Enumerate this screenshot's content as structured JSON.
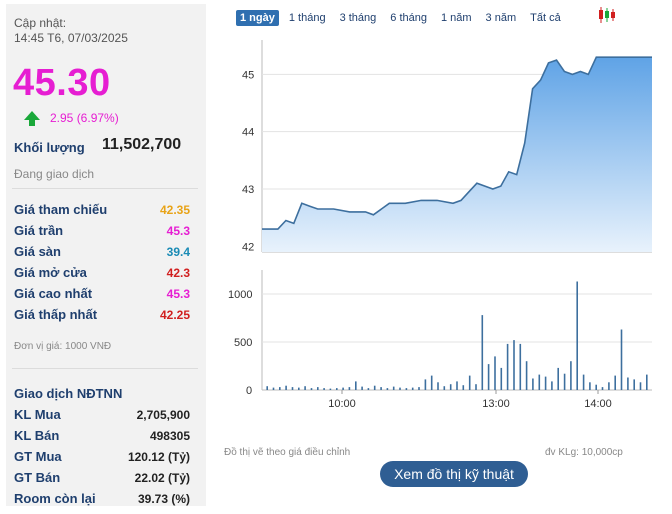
{
  "header": {
    "updated_label": "Cập nhật:",
    "updated_time": "14:45 T6, 07/03/2025"
  },
  "quote": {
    "price": "45.30",
    "change_text": "2.95 (6.97%)",
    "volume_label": "Khối lượng",
    "volume_value": "11,502,700",
    "status": "Đang giao dịch"
  },
  "price_table": [
    {
      "label": "Giá tham chiếu",
      "value": "42.35",
      "color": "#e8a317"
    },
    {
      "label": "Giá trần",
      "value": "45.3",
      "color": "#e61ed2"
    },
    {
      "label": "Giá sàn",
      "value": "39.4",
      "color": "#1a8bb5"
    },
    {
      "label": "Giá mở cửa",
      "value": "42.3",
      "color": "#d11f1f"
    },
    {
      "label": "Giá cao nhất",
      "value": "45.3",
      "color": "#e61ed2"
    },
    {
      "label": "Giá thấp nhất",
      "value": "42.25",
      "color": "#d11f1f"
    }
  ],
  "unit_note": "Đơn vị giá: 1000 VNĐ",
  "foreign": {
    "title": "Giao dịch NĐTNN",
    "rows": [
      {
        "label": "KL Mua",
        "value": "2,705,900"
      },
      {
        "label": "KL Bán",
        "value": "498305"
      },
      {
        "label": "GT Mua",
        "value": "120.12 (Tỷ)"
      },
      {
        "label": "GT Bán",
        "value": "22.02 (Tỷ)"
      },
      {
        "label": "Room còn lại",
        "value": "39.73 (%)"
      }
    ]
  },
  "tabs": [
    "1 ngày",
    "1 tháng",
    "3 tháng",
    "6 tháng",
    "1 năm",
    "3 năm",
    "Tất cả"
  ],
  "active_tab": 0,
  "icons": {
    "chart_type": "candlestick-icon",
    "up": "up-arrow-icon"
  },
  "chart_notes": {
    "left": "Đồ thị vẽ theo giá điều chỉnh",
    "right": "đv KLg: 10,000cp"
  },
  "tech_button_label": "Xem đồ thị kỹ thuật",
  "chart_data": [
    {
      "type": "area",
      "ylim": [
        41.9,
        45.6
      ],
      "yticks": [
        "45",
        "44",
        "43",
        "42"
      ],
      "ytick_values": [
        45,
        44,
        43,
        42
      ],
      "x_range": [
        "09:15",
        "14:45"
      ],
      "points": [
        [
          "09:15",
          42.3
        ],
        [
          "09:25",
          42.3
        ],
        [
          "09:30",
          42.45
        ],
        [
          "09:35",
          42.4
        ],
        [
          "09:40",
          42.75
        ],
        [
          "09:45",
          42.7
        ],
        [
          "09:50",
          42.65
        ],
        [
          "10:00",
          42.65
        ],
        [
          "10:10",
          42.6
        ],
        [
          "10:20",
          42.6
        ],
        [
          "10:25",
          42.55
        ],
        [
          "10:35",
          42.75
        ],
        [
          "10:45",
          42.75
        ],
        [
          "10:55",
          42.8
        ],
        [
          "11:05",
          42.8
        ],
        [
          "11:15",
          42.75
        ],
        [
          "11:20",
          42.8
        ],
        [
          "11:25",
          42.95
        ],
        [
          "11:30",
          43.1
        ],
        [
          "11:35",
          43.05
        ],
        [
          "13:00",
          43.05
        ],
        [
          "13:05",
          43.0
        ],
        [
          "13:10",
          43.05
        ],
        [
          "13:15",
          43.3
        ],
        [
          "13:20",
          43.25
        ],
        [
          "13:25",
          43.8
        ],
        [
          "13:30",
          44.75
        ],
        [
          "13:35",
          44.9
        ],
        [
          "13:40",
          45.2
        ],
        [
          "13:45",
          45.25
        ],
        [
          "13:50",
          45.05
        ],
        [
          "13:55",
          45.0
        ],
        [
          "14:00",
          45.05
        ],
        [
          "14:05",
          45.0
        ],
        [
          "14:10",
          45.3
        ],
        [
          "14:20",
          45.3
        ],
        [
          "14:45",
          45.3
        ]
      ]
    },
    {
      "type": "bar",
      "ylim": [
        0,
        1250
      ],
      "yticks": [
        "1000",
        "500",
        "0"
      ],
      "ytick_values": [
        1000,
        500,
        0
      ],
      "xticks": [
        "10:00",
        "13:00",
        "14:00"
      ],
      "xtick_values": [
        "10:00",
        "13:00",
        "14:00"
      ],
      "bars": [
        [
          "09:15",
          40
        ],
        [
          "09:20",
          25
        ],
        [
          "09:25",
          30
        ],
        [
          "09:30",
          45
        ],
        [
          "09:35",
          30
        ],
        [
          "09:40",
          25
        ],
        [
          "09:45",
          40
        ],
        [
          "09:50",
          20
        ],
        [
          "09:55",
          30
        ],
        [
          "10:00",
          20
        ],
        [
          "10:05",
          15
        ],
        [
          "10:10",
          20
        ],
        [
          "10:15",
          25
        ],
        [
          "10:20",
          30
        ],
        [
          "10:25",
          90
        ],
        [
          "10:30",
          35
        ],
        [
          "10:35",
          20
        ],
        [
          "10:40",
          45
        ],
        [
          "10:45",
          30
        ],
        [
          "10:50",
          20
        ],
        [
          "10:55",
          35
        ],
        [
          "11:00",
          25
        ],
        [
          "11:05",
          20
        ],
        [
          "11:10",
          25
        ],
        [
          "11:15",
          30
        ],
        [
          "11:20",
          110
        ],
        [
          "11:25",
          150
        ],
        [
          "11:30",
          80
        ],
        [
          "11:35",
          40
        ],
        [
          "13:00",
          60
        ],
        [
          "13:05",
          90
        ],
        [
          "13:10",
          50
        ],
        [
          "13:15",
          150
        ],
        [
          "13:20",
          60
        ],
        [
          "13:25",
          780
        ],
        [
          "13:30",
          270
        ],
        [
          "13:35",
          350
        ],
        [
          "13:40",
          230
        ],
        [
          "13:45",
          480
        ],
        [
          "13:50",
          520
        ],
        [
          "13:55",
          480
        ],
        [
          "14:00",
          300
        ],
        [
          "14:05",
          120
        ],
        [
          "14:10",
          160
        ],
        [
          "14:15",
          140
        ],
        [
          "14:20",
          90
        ],
        [
          "14:25",
          230
        ],
        [
          "14:30",
          170
        ],
        [
          "14:35",
          300
        ],
        [
          "14:40",
          1130
        ],
        [
          "14:45",
          160
        ],
        [
          "14:50",
          80
        ],
        [
          "14:55",
          55
        ],
        [
          "15:00",
          30
        ],
        [
          "15:05",
          80
        ],
        [
          "15:10",
          150
        ],
        [
          "15:15",
          630
        ],
        [
          "15:20",
          130
        ],
        [
          "15:25",
          110
        ],
        [
          "15:30",
          80
        ],
        [
          "15:35",
          160
        ]
      ]
    }
  ]
}
